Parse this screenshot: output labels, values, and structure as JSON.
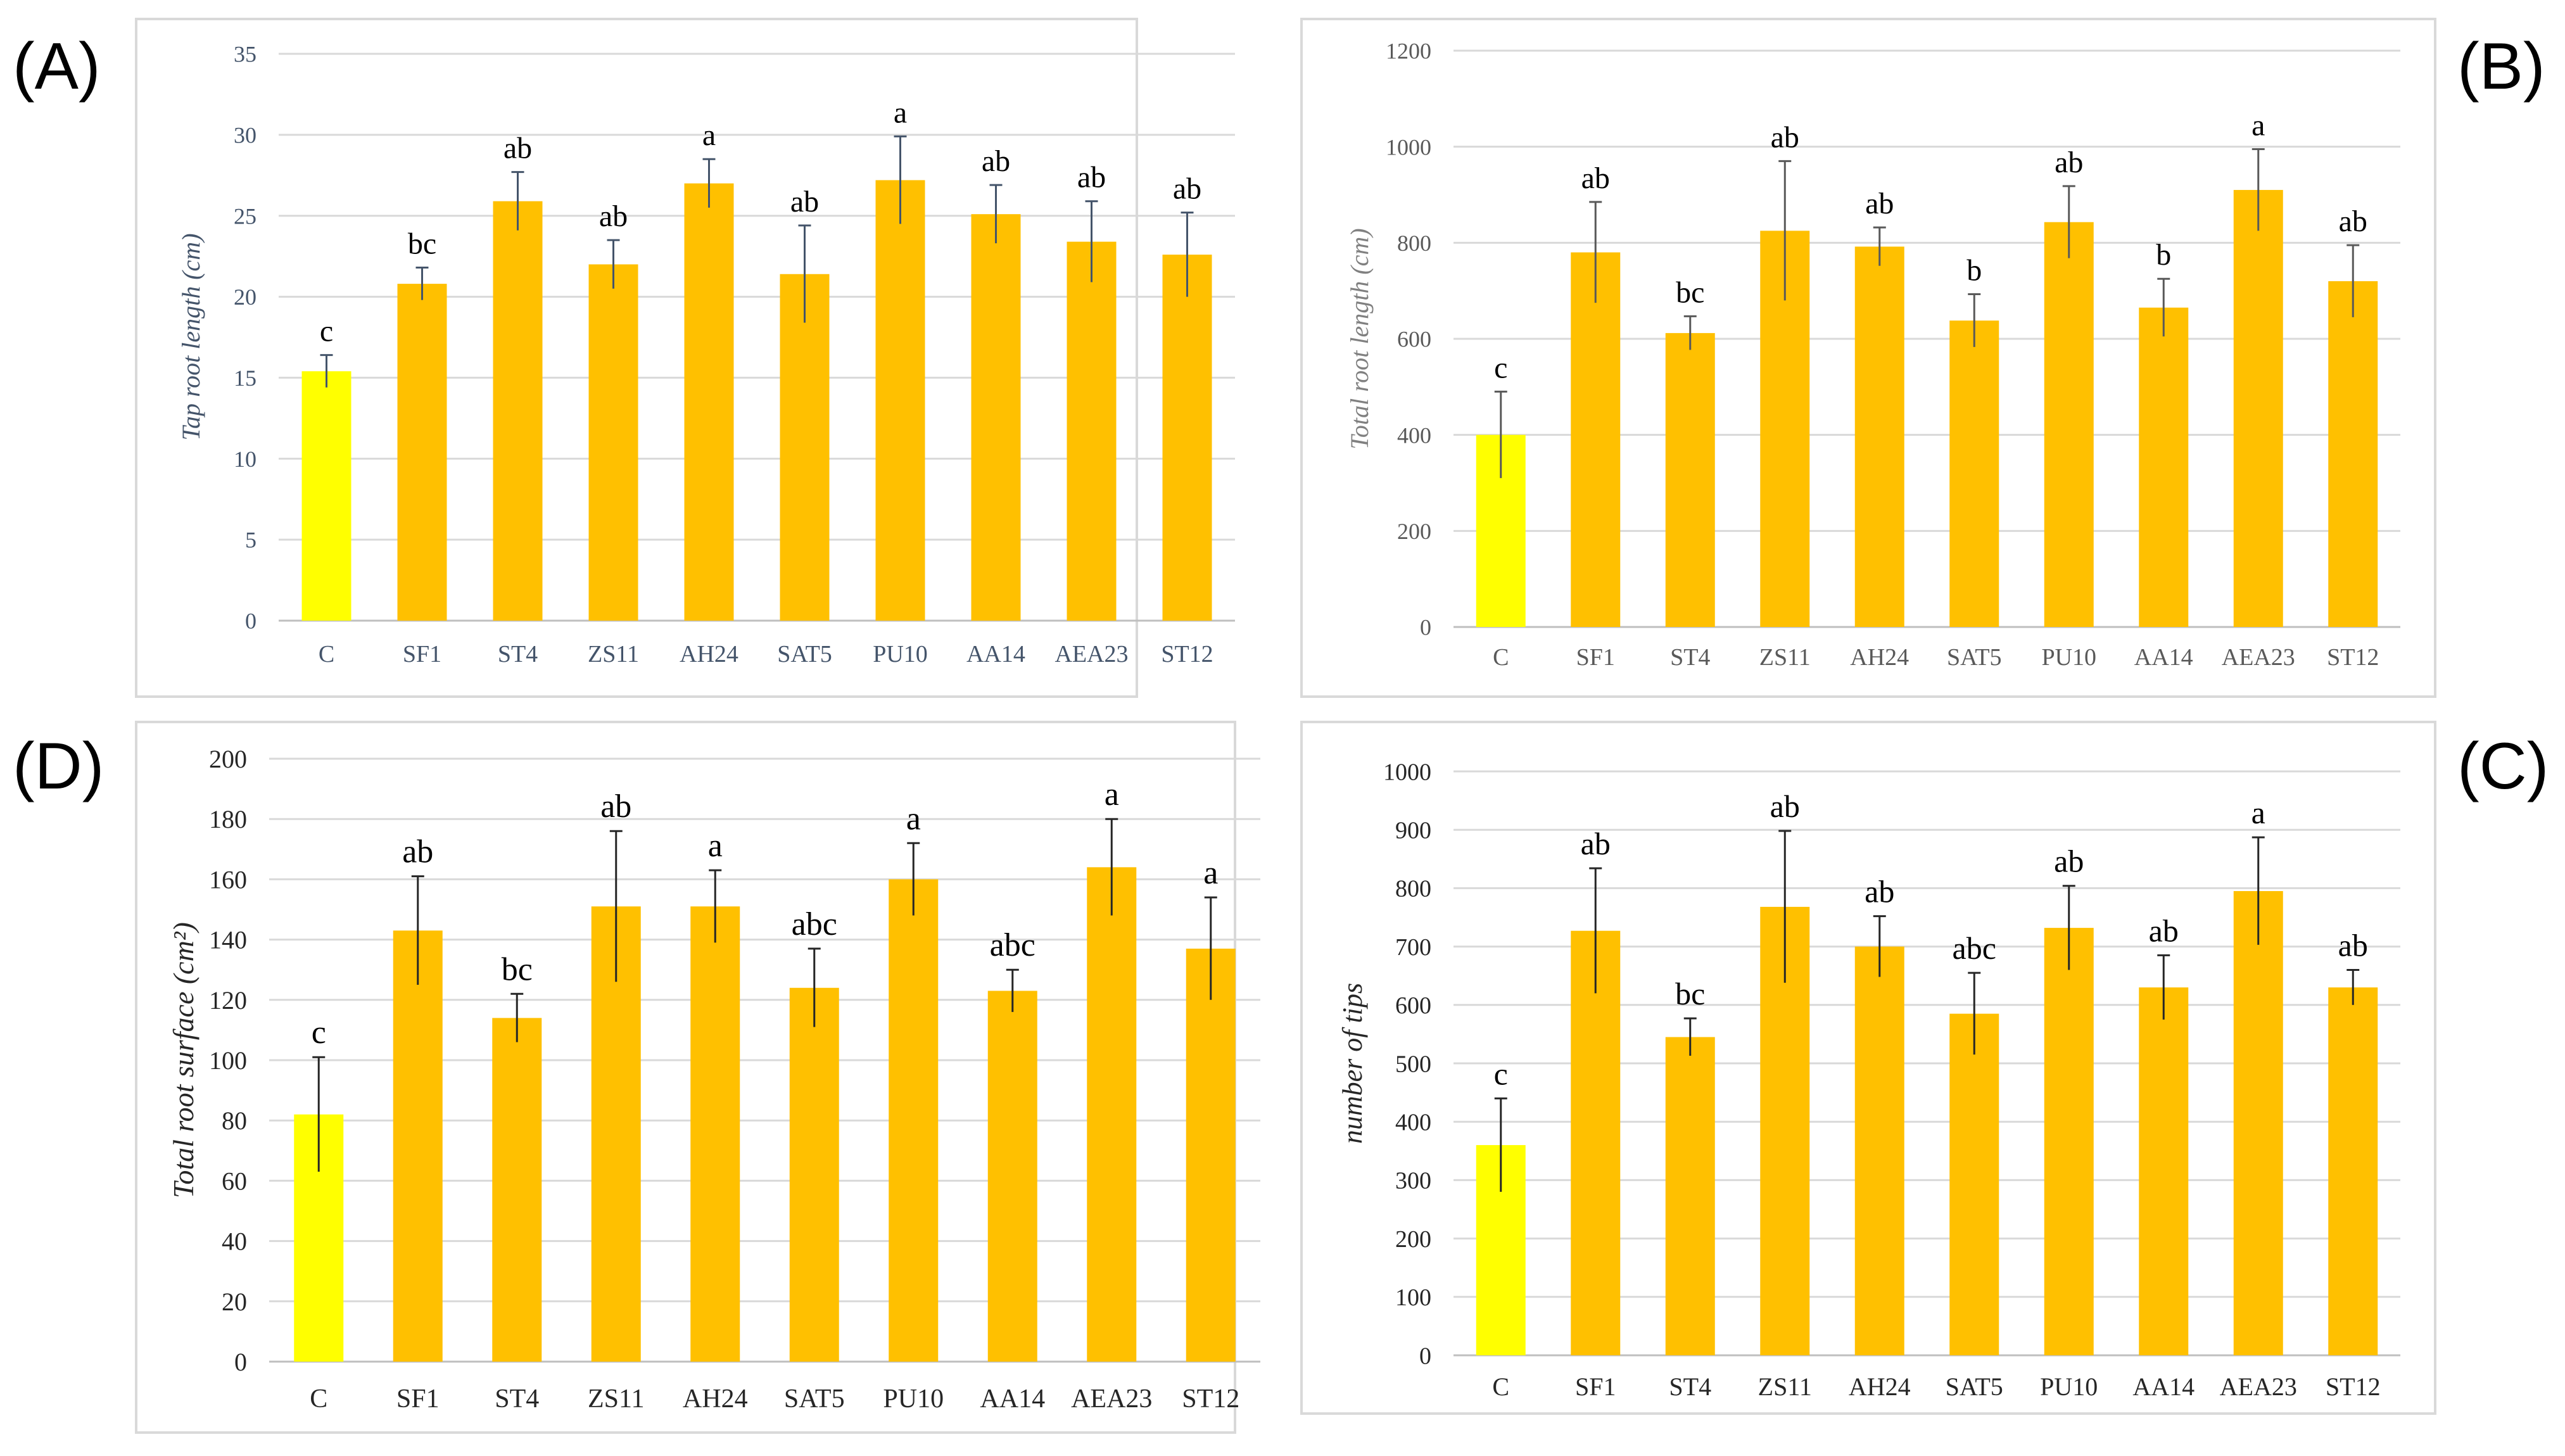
{
  "chart_data": [
    {
      "type": "bar",
      "panel": "(A)",
      "ylabel": "Tap root length (cm)",
      "ylim": [
        0,
        35
      ],
      "yticks": [
        0,
        5,
        10,
        15,
        20,
        25,
        30,
        35
      ],
      "categories": [
        "C",
        "SF1",
        "ST4",
        "ZS11",
        "AH24",
        "SAT5",
        "PU10",
        "AA14",
        "AEA23",
        "ST12"
      ],
      "values": [
        15.4,
        20.8,
        25.9,
        22.0,
        27.0,
        21.4,
        27.2,
        25.1,
        23.4,
        22.6
      ],
      "errors": [
        1.0,
        1.0,
        1.8,
        1.5,
        1.5,
        3.0,
        2.7,
        1.8,
        2.5,
        2.6
      ],
      "letters": [
        "c",
        "bc",
        "ab",
        "ab",
        "a",
        "ab",
        "a",
        "ab",
        "ab",
        "ab"
      ],
      "colors": {
        "control": "#FFFF00",
        "treatment": "#FFC000"
      }
    },
    {
      "type": "bar",
      "panel": "(B)",
      "ylabel": "Total root length (cm)",
      "ylim": [
        0,
        1200
      ],
      "yticks": [
        0,
        200,
        400,
        600,
        800,
        1000,
        1200
      ],
      "categories": [
        "C",
        "SF1",
        "ST4",
        "ZS11",
        "AH24",
        "SAT5",
        "PU10",
        "AA14",
        "AEA23",
        "ST12"
      ],
      "values": [
        400,
        780,
        612,
        825,
        792,
        638,
        843,
        665,
        910,
        720
      ],
      "errors": [
        90,
        105,
        35,
        145,
        40,
        55,
        75,
        60,
        85,
        75
      ],
      "letters": [
        "c",
        "ab",
        "bc",
        "ab",
        "ab",
        "b",
        "ab",
        "b",
        "a",
        "ab"
      ],
      "colors": {
        "control": "#FFFF00",
        "treatment": "#FFC000"
      }
    },
    {
      "type": "bar",
      "panel": "(D)",
      "ylabel": "Total root surface (cm²)",
      "ylim": [
        0,
        200
      ],
      "yticks": [
        0,
        20,
        40,
        60,
        80,
        100,
        120,
        140,
        160,
        180,
        200
      ],
      "categories": [
        "C",
        "SF1",
        "ST4",
        "ZS11",
        "AH24",
        "SAT5",
        "PU10",
        "AA14",
        "AEA23",
        "ST12"
      ],
      "values": [
        82,
        143,
        114,
        151,
        151,
        124,
        160,
        123,
        164,
        137
      ],
      "errors": [
        19,
        18,
        8,
        25,
        12,
        13,
        12,
        7,
        16,
        17
      ],
      "letters": [
        "c",
        "ab",
        "bc",
        "ab",
        "a",
        "abc",
        "a",
        "abc",
        "a",
        "a"
      ],
      "colors": {
        "control": "#FFFF00",
        "treatment": "#FFC000"
      }
    },
    {
      "type": "bar",
      "panel": "(C)",
      "ylabel": "number of tips",
      "ylim": [
        0,
        1000
      ],
      "yticks": [
        0,
        100,
        200,
        300,
        400,
        500,
        600,
        700,
        800,
        900,
        1000
      ],
      "categories": [
        "C",
        "SF1",
        "ST4",
        "ZS11",
        "AH24",
        "SAT5",
        "PU10",
        "AA14",
        "AEA23",
        "ST12"
      ],
      "values": [
        360,
        727,
        545,
        768,
        700,
        585,
        732,
        630,
        795,
        630
      ],
      "errors": [
        80,
        107,
        32,
        130,
        52,
        70,
        72,
        55,
        92,
        30
      ],
      "letters": [
        "c",
        "ab",
        "bc",
        "ab",
        "ab",
        "abc",
        "ab",
        "ab",
        "a",
        "ab"
      ],
      "colors": {
        "control": "#FFFF00",
        "treatment": "#FFC000"
      }
    }
  ]
}
